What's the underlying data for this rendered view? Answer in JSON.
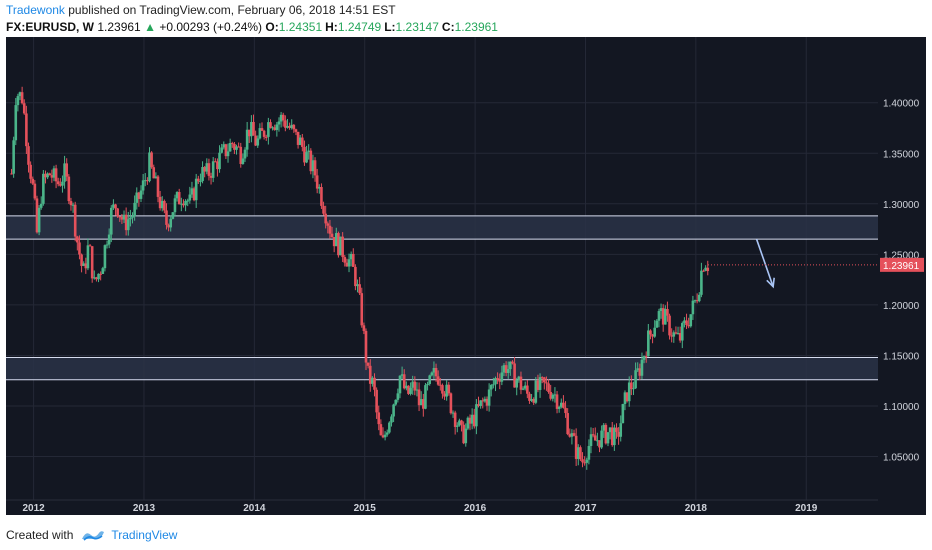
{
  "header": {
    "author": "Tradewonk",
    "published": " published on TradingView.com, February 06, 2018 14:51 EST",
    "symbol": "FX:EURUSD, W",
    "last": "1.23961",
    "change": "+0.00293 (+0.24%)",
    "open_label": "O:",
    "open": "1.24351",
    "high_label": "H:",
    "high": "1.24749",
    "low_label": "L:",
    "low": "1.23147",
    "close_label": "C:",
    "close": "1.23961"
  },
  "footer": {
    "created_with": "Created with",
    "brand": "TradingView"
  },
  "colors": {
    "background": "#131722",
    "up": "#4bb58a",
    "down": "#e5515b",
    "zone": "#2a3347",
    "zone_line": "#d6dcef",
    "arrow": "#a9c4f5",
    "price_tag": "#e5515b"
  },
  "chart_data": {
    "type": "candlestick",
    "symbol": "FX:EURUSD",
    "timeframe": "W",
    "y_ticks": [
      "1.40000",
      "1.35000",
      "1.30000",
      "1.25000",
      "1.20000",
      "1.15000",
      "1.10000",
      "1.05000"
    ],
    "y_tick_values": [
      1.4,
      1.35,
      1.3,
      1.25,
      1.2,
      1.15,
      1.1,
      1.05
    ],
    "x_ticks": [
      "2012",
      "2013",
      "2014",
      "2015",
      "2016",
      "2017",
      "2018",
      "2019"
    ],
    "x_tick_values": [
      2012,
      2013,
      2014,
      2015,
      2016,
      2017,
      2018,
      2019
    ],
    "ylim": [
      1.007,
      1.465
    ],
    "xlim": [
      2011.75,
      2019.65
    ],
    "grid": true,
    "last_price_tag": "1.23961",
    "last_price": 1.23961,
    "zones": [
      {
        "top": 1.288,
        "bottom": 1.265
      },
      {
        "top": 1.148,
        "bottom": 1.126
      }
    ],
    "arrow": {
      "from": [
        2018.55,
        1.265
      ],
      "to": [
        2018.7,
        1.218
      ]
    },
    "path": [
      [
        2011.8,
        1.33
      ],
      [
        2011.84,
        1.41
      ],
      [
        2011.9,
        1.405
      ],
      [
        2011.95,
        1.35
      ],
      [
        2012.0,
        1.31
      ],
      [
        2012.03,
        1.27
      ],
      [
        2012.08,
        1.32
      ],
      [
        2012.15,
        1.33
      ],
      [
        2012.22,
        1.32
      ],
      [
        2012.28,
        1.33
      ],
      [
        2012.35,
        1.3
      ],
      [
        2012.4,
        1.26
      ],
      [
        2012.45,
        1.23
      ],
      [
        2012.5,
        1.26
      ],
      [
        2012.55,
        1.22
      ],
      [
        2012.62,
        1.24
      ],
      [
        2012.7,
        1.29
      ],
      [
        2012.75,
        1.3
      ],
      [
        2012.82,
        1.28
      ],
      [
        2012.9,
        1.29
      ],
      [
        2013.0,
        1.32
      ],
      [
        2013.05,
        1.34
      ],
      [
        2013.1,
        1.32
      ],
      [
        2013.15,
        1.3
      ],
      [
        2013.2,
        1.28
      ],
      [
        2013.28,
        1.3
      ],
      [
        2013.35,
        1.31
      ],
      [
        2013.42,
        1.3
      ],
      [
        2013.5,
        1.33
      ],
      [
        2013.58,
        1.33
      ],
      [
        2013.65,
        1.34
      ],
      [
        2013.72,
        1.35
      ],
      [
        2013.8,
        1.36
      ],
      [
        2013.88,
        1.35
      ],
      [
        2013.95,
        1.375
      ],
      [
        2014.02,
        1.36
      ],
      [
        2014.08,
        1.37
      ],
      [
        2014.15,
        1.385
      ],
      [
        2014.2,
        1.38
      ],
      [
        2014.25,
        1.385
      ],
      [
        2014.32,
        1.375
      ],
      [
        2014.38,
        1.365
      ],
      [
        2014.42,
        1.36
      ],
      [
        2014.48,
        1.345
      ],
      [
        2014.55,
        1.33
      ],
      [
        2014.6,
        1.31
      ],
      [
        2014.65,
        1.29
      ],
      [
        2014.7,
        1.27
      ],
      [
        2014.76,
        1.26
      ],
      [
        2014.82,
        1.25
      ],
      [
        2014.88,
        1.24
      ],
      [
        2014.92,
        1.225
      ],
      [
        2014.97,
        1.19
      ],
      [
        2015.0,
        1.16
      ],
      [
        2015.03,
        1.13
      ],
      [
        2015.08,
        1.12
      ],
      [
        2015.12,
        1.08
      ],
      [
        2015.16,
        1.06
      ],
      [
        2015.2,
        1.08
      ],
      [
        2015.25,
        1.1
      ],
      [
        2015.32,
        1.13
      ],
      [
        2015.38,
        1.11
      ],
      [
        2015.45,
        1.12
      ],
      [
        2015.5,
        1.1
      ],
      [
        2015.55,
        1.11
      ],
      [
        2015.62,
        1.13
      ],
      [
        2015.68,
        1.13
      ],
      [
        2015.75,
        1.11
      ],
      [
        2015.82,
        1.09
      ],
      [
        2015.88,
        1.07
      ],
      [
        2015.94,
        1.08
      ],
      [
        2016.0,
        1.09
      ],
      [
        2016.05,
        1.1
      ],
      [
        2016.12,
        1.11
      ],
      [
        2016.2,
        1.13
      ],
      [
        2016.28,
        1.14
      ],
      [
        2016.35,
        1.13
      ],
      [
        2016.42,
        1.12
      ],
      [
        2016.48,
        1.11
      ],
      [
        2016.55,
        1.115
      ],
      [
        2016.62,
        1.12
      ],
      [
        2016.7,
        1.115
      ],
      [
        2016.76,
        1.105
      ],
      [
        2016.82,
        1.09
      ],
      [
        2016.87,
        1.07
      ],
      [
        2016.92,
        1.055
      ],
      [
        2016.97,
        1.045
      ],
      [
        2017.02,
        1.06
      ],
      [
        2017.08,
        1.065
      ],
      [
        2017.15,
        1.07
      ],
      [
        2017.22,
        1.075
      ],
      [
        2017.28,
        1.065
      ],
      [
        2017.32,
        1.085
      ],
      [
        2017.38,
        1.115
      ],
      [
        2017.45,
        1.125
      ],
      [
        2017.5,
        1.14
      ],
      [
        2017.55,
        1.16
      ],
      [
        2017.6,
        1.175
      ],
      [
        2017.65,
        1.19
      ],
      [
        2017.7,
        1.19
      ],
      [
        2017.75,
        1.18
      ],
      [
        2017.8,
        1.17
      ],
      [
        2017.85,
        1.165
      ],
      [
        2017.9,
        1.18
      ],
      [
        2017.95,
        1.19
      ],
      [
        2018.0,
        1.205
      ],
      [
        2018.03,
        1.22
      ],
      [
        2018.06,
        1.24
      ],
      [
        2018.08,
        1.245
      ],
      [
        2018.11,
        1.24
      ]
    ]
  }
}
